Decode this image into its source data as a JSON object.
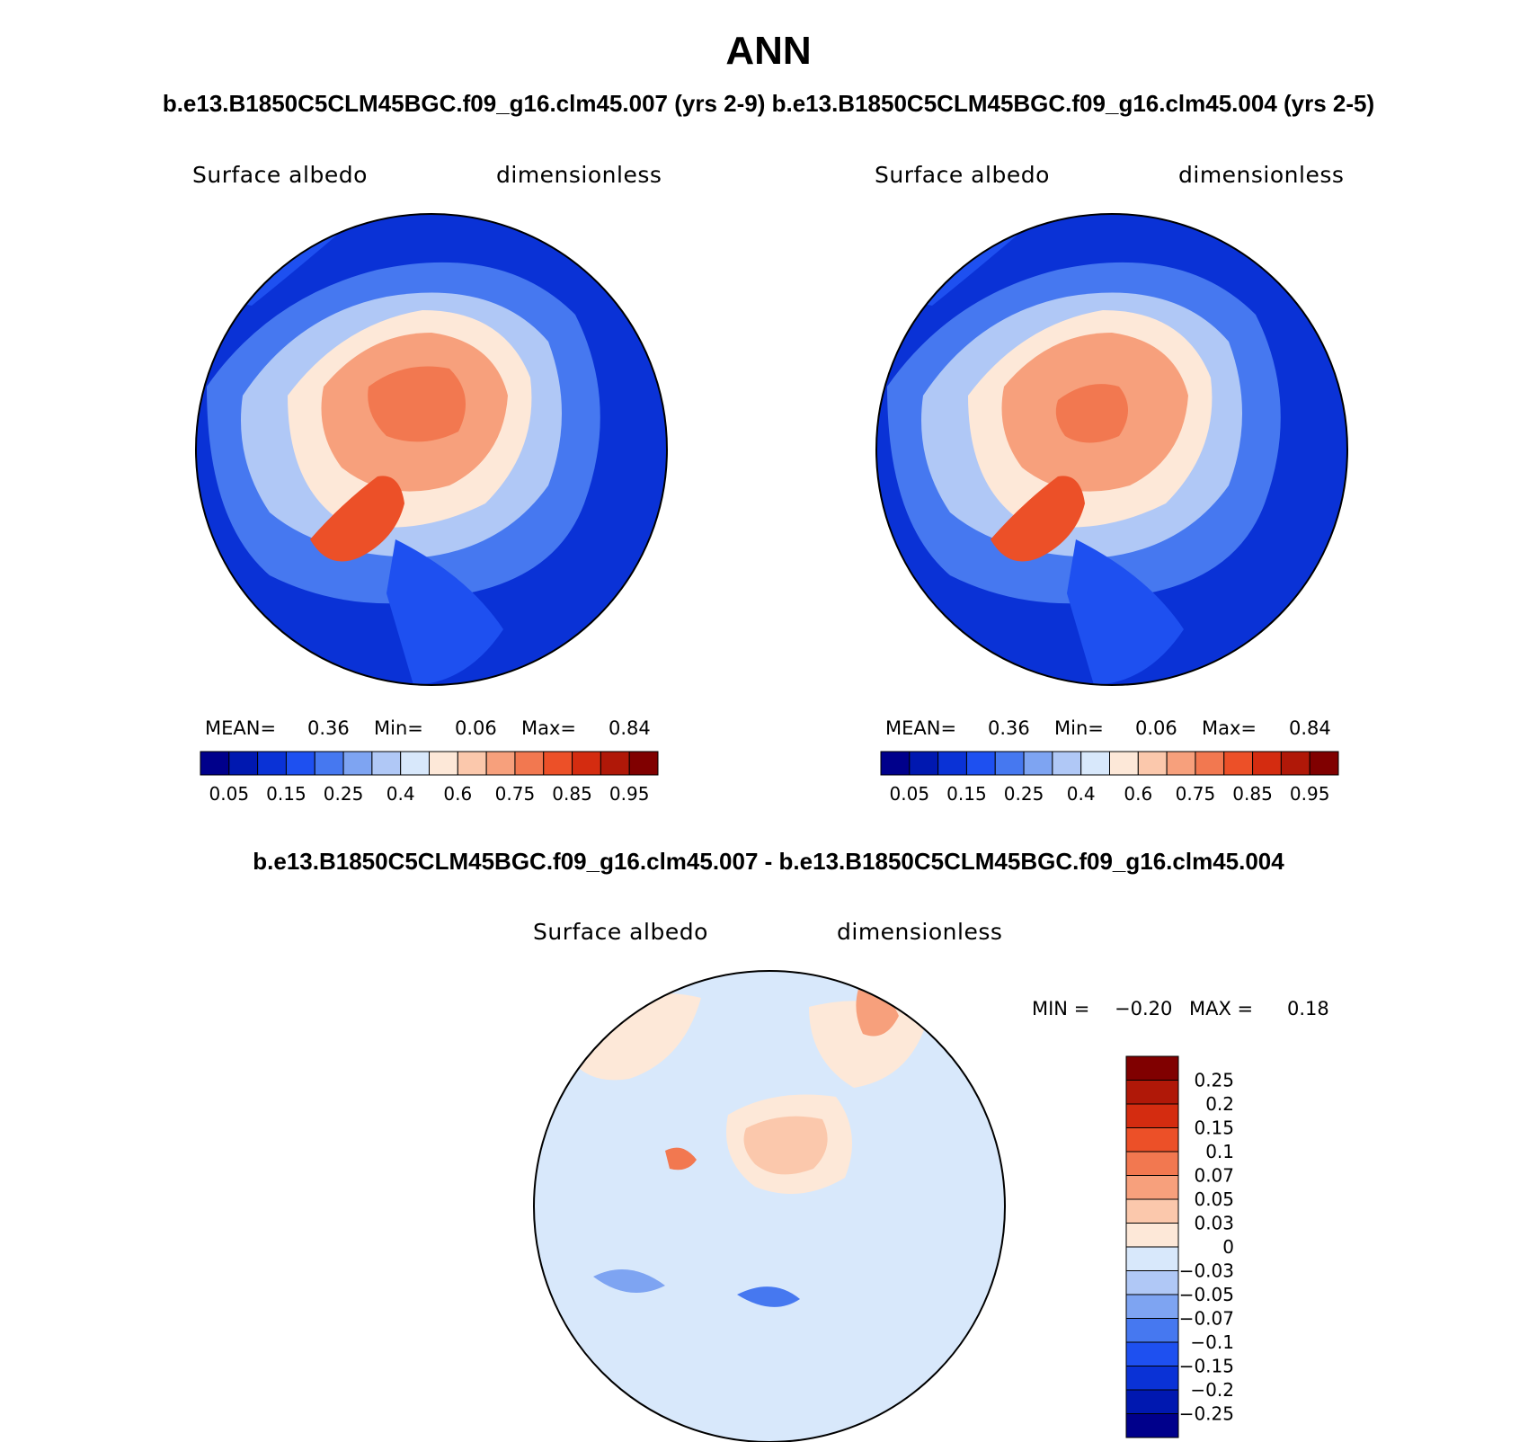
{
  "title": "ANN",
  "case_titles": "b.e13.B1850C5CLM45BGC.f09_g16.clm45.007 (yrs 2-9)  b.e13.B1850C5CLM45BGC.f09_g16.clm45.004 (yrs 2-5)",
  "diff_title": "b.e13.B1850C5CLM45BGC.f09_g16.clm45.007 - b.e13.B1850C5CLM45BGC.f09_g16.clm45.004",
  "panels": [
    {
      "variable": "Surface albedo",
      "units": "dimensionless",
      "stats": {
        "mean_label": "MEAN=",
        "mean": "0.36",
        "min_label": "Min=",
        "min": "0.06",
        "max_label": "Max=",
        "max": "0.84"
      }
    },
    {
      "variable": "Surface albedo",
      "units": "dimensionless",
      "stats": {
        "mean_label": "MEAN=",
        "mean": "0.36",
        "min_label": "Min=",
        "min": "0.06",
        "max_label": "Max=",
        "max": "0.84"
      }
    },
    {
      "variable": "Surface albedo",
      "units": "dimensionless",
      "stats": {
        "min_label": "MIN =",
        "min": "−0.20",
        "max_label": "MAX =",
        "max": "0.18"
      }
    }
  ],
  "colorbar_abs": {
    "colors": [
      "#00008b",
      "#0018b0",
      "#0a32d6",
      "#1e50f0",
      "#4678f0",
      "#7ea4f2",
      "#b0c8f6",
      "#d8e8fb",
      "#fde8d8",
      "#fbc8ac",
      "#f7a07c",
      "#f27850",
      "#ec5028",
      "#d42c10",
      "#b01808",
      "#800000"
    ],
    "labels": [
      "0.05",
      "0.15",
      "0.25",
      "0.4",
      "0.6",
      "0.75",
      "0.85",
      "0.95"
    ]
  },
  "colorbar_diff": {
    "colors": [
      "#00008b",
      "#0018b0",
      "#0a32d6",
      "#1e50f0",
      "#4678f0",
      "#7ea4f2",
      "#b0c8f6",
      "#d8e8fb",
      "#fde8d8",
      "#fbc8ac",
      "#f7a07c",
      "#f27850",
      "#ec5028",
      "#d42c10",
      "#b01808",
      "#800000"
    ],
    "labels": [
      "−0.25",
      "−0.2",
      "−0.15",
      "−0.1",
      "−0.07",
      "−0.05",
      "−0.03",
      "0",
      "0.03",
      "0.05",
      "0.07",
      "0.1",
      "0.15",
      "0.2",
      "0.25"
    ]
  }
}
